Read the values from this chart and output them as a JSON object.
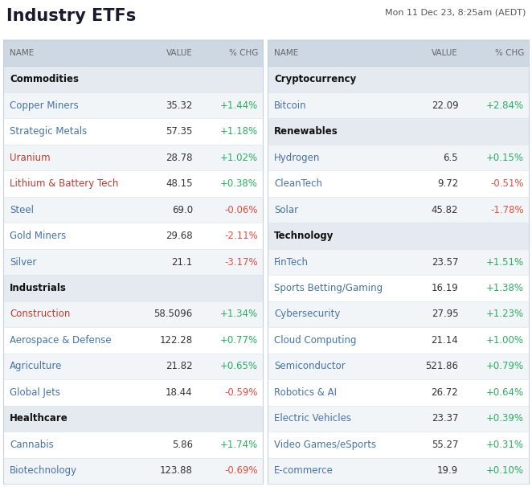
{
  "title": "Industry ETFs",
  "datetime": "Mon 11 Dec 23, 8:25am (AEDT)",
  "left_sections": [
    {
      "section": "Commodities",
      "rows": [
        {
          "name": "Copper Miners",
          "value": "35.32",
          "chg": "+1.44%",
          "name_color": "#4472a8",
          "chg_color": "#27ae60"
        },
        {
          "name": "Strategic Metals",
          "value": "57.35",
          "chg": "+1.18%",
          "name_color": "#4472a8",
          "chg_color": "#27ae60"
        },
        {
          "name": "Uranium",
          "value": "28.78",
          "chg": "+1.02%",
          "name_color": "#c0392b",
          "chg_color": "#27ae60"
        },
        {
          "name": "Lithium & Battery Tech",
          "value": "48.15",
          "chg": "+0.38%",
          "name_color": "#c0392b",
          "chg_color": "#27ae60"
        },
        {
          "name": "Steel",
          "value": "69.0",
          "chg": "-0.06%",
          "name_color": "#4472a8",
          "chg_color": "#e74c3c"
        },
        {
          "name": "Gold Miners",
          "value": "29.68",
          "chg": "-2.11%",
          "name_color": "#4472a8",
          "chg_color": "#e74c3c"
        },
        {
          "name": "Silver",
          "value": "21.1",
          "chg": "-3.17%",
          "name_color": "#4472a8",
          "chg_color": "#e74c3c"
        }
      ]
    },
    {
      "section": "Industrials",
      "rows": [
        {
          "name": "Construction",
          "value": "58.5096",
          "chg": "+1.34%",
          "name_color": "#c0392b",
          "chg_color": "#27ae60"
        },
        {
          "name": "Aerospace & Defense",
          "value": "122.28",
          "chg": "+0.77%",
          "name_color": "#4472a8",
          "chg_color": "#27ae60"
        },
        {
          "name": "Agriculture",
          "value": "21.82",
          "chg": "+0.65%",
          "name_color": "#4472a8",
          "chg_color": "#27ae60"
        },
        {
          "name": "Global Jets",
          "value": "18.44",
          "chg": "-0.59%",
          "name_color": "#4472a8",
          "chg_color": "#e74c3c"
        }
      ]
    },
    {
      "section": "Healthcare",
      "rows": [
        {
          "name": "Cannabis",
          "value": "5.86",
          "chg": "+1.74%",
          "name_color": "#4472a8",
          "chg_color": "#27ae60"
        },
        {
          "name": "Biotechnology",
          "value": "123.88",
          "chg": "-0.69%",
          "name_color": "#4472a8",
          "chg_color": "#e74c3c"
        }
      ]
    }
  ],
  "right_sections": [
    {
      "section": "Cryptocurrency",
      "rows": [
        {
          "name": "Bitcoin",
          "value": "22.09",
          "chg": "+2.84%",
          "name_color": "#4472a8",
          "chg_color": "#27ae60"
        }
      ]
    },
    {
      "section": "Renewables",
      "rows": [
        {
          "name": "Hydrogen",
          "value": "6.5",
          "chg": "+0.15%",
          "name_color": "#4472a8",
          "chg_color": "#27ae60"
        },
        {
          "name": "CleanTech",
          "value": "9.72",
          "chg": "-0.51%",
          "name_color": "#4472a8",
          "chg_color": "#e74c3c"
        },
        {
          "name": "Solar",
          "value": "45.82",
          "chg": "-1.78%",
          "name_color": "#4472a8",
          "chg_color": "#e74c3c"
        }
      ]
    },
    {
      "section": "Technology",
      "rows": [
        {
          "name": "FinTech",
          "value": "23.57",
          "chg": "+1.51%",
          "name_color": "#4472a8",
          "chg_color": "#27ae60"
        },
        {
          "name": "Sports Betting/Gaming",
          "value": "16.19",
          "chg": "+1.38%",
          "name_color": "#4472a8",
          "chg_color": "#27ae60"
        },
        {
          "name": "Cybersecurity",
          "value": "27.95",
          "chg": "+1.23%",
          "name_color": "#4472a8",
          "chg_color": "#27ae60"
        },
        {
          "name": "Cloud Computing",
          "value": "21.14",
          "chg": "+1.00%",
          "name_color": "#4472a8",
          "chg_color": "#27ae60"
        },
        {
          "name": "Semiconductor",
          "value": "521.86",
          "chg": "+0.79%",
          "name_color": "#4472a8",
          "chg_color": "#27ae60"
        },
        {
          "name": "Robotics & AI",
          "value": "26.72",
          "chg": "+0.64%",
          "name_color": "#4472a8",
          "chg_color": "#27ae60"
        },
        {
          "name": "Electric Vehicles",
          "value": "23.37",
          "chg": "+0.39%",
          "name_color": "#4472a8",
          "chg_color": "#27ae60"
        },
        {
          "name": "Video Games/eSports",
          "value": "55.27",
          "chg": "+0.31%",
          "name_color": "#4472a8",
          "chg_color": "#27ae60"
        },
        {
          "name": "E-commerce",
          "value": "19.9",
          "chg": "+0.10%",
          "name_color": "#4472a8",
          "chg_color": "#27ae60"
        }
      ]
    }
  ],
  "bg_color": "#ffffff",
  "header_bg": "#cdd8e3",
  "section_bg": "#e4eaf0",
  "row_bg_even": "#ffffff",
  "row_bg_odd": "#f2f5f8",
  "header_text_color": "#666666",
  "section_text_color": "#111111",
  "row_text_color": "#333333",
  "title_color": "#1a1a2e",
  "datetime_color": "#555555",
  "border_color": "#c5d0dc",
  "divider_color": "#dde4eb"
}
